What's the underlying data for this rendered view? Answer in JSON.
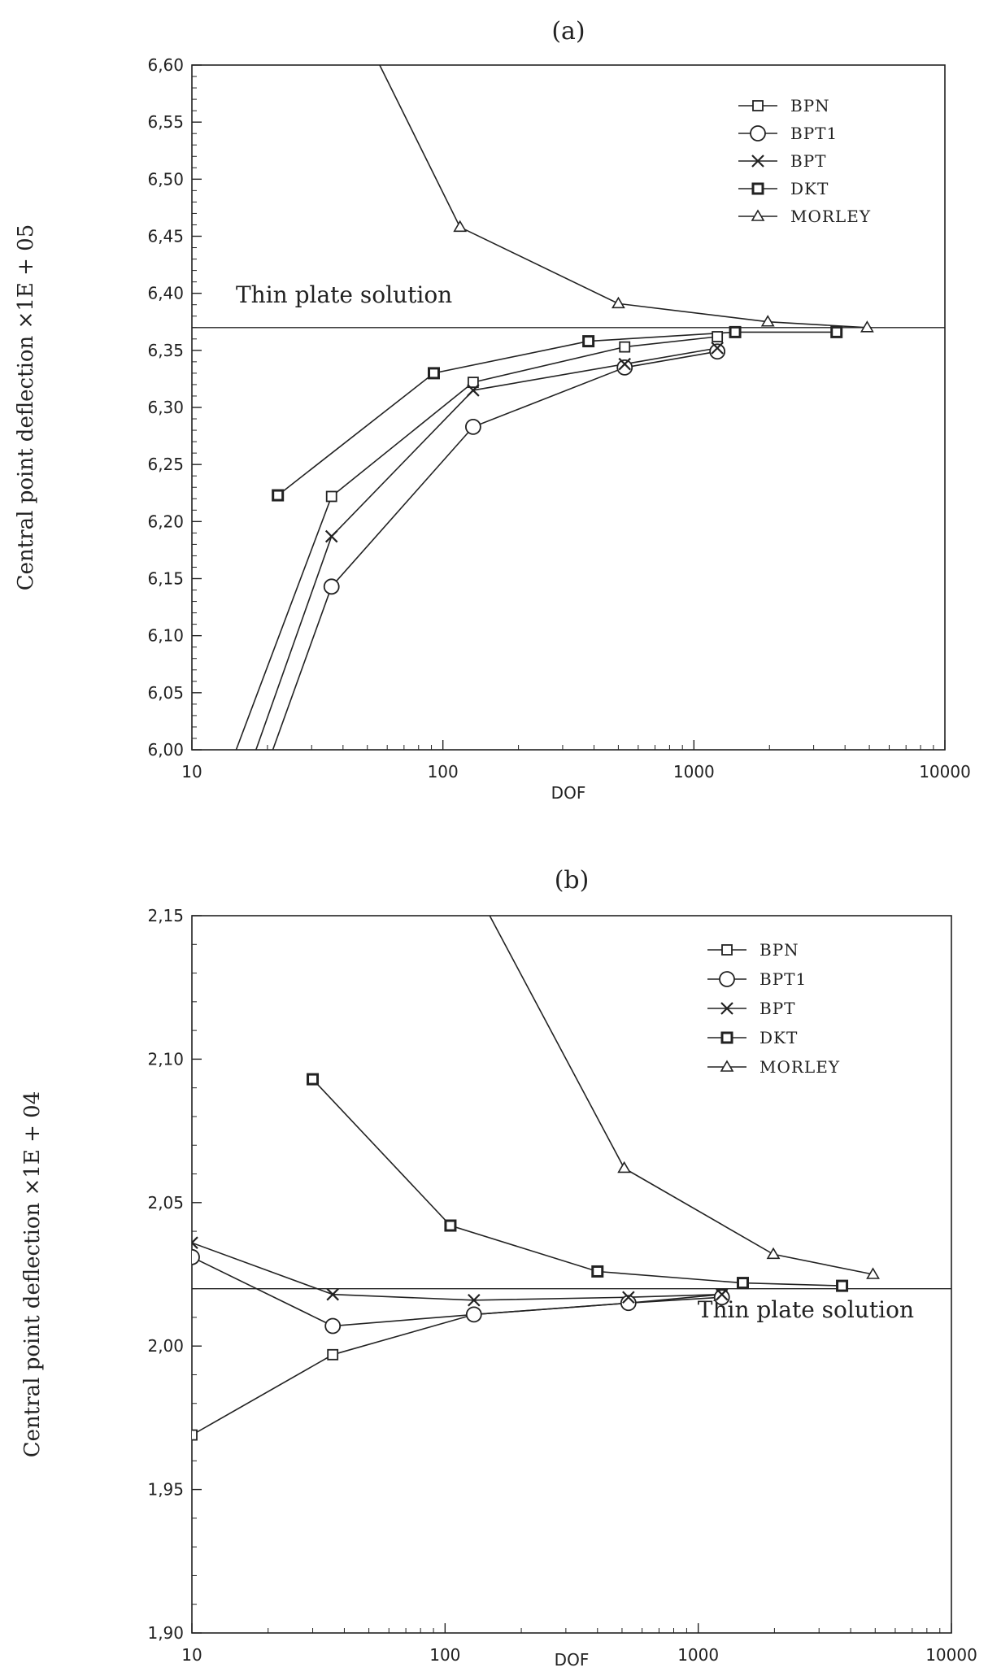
{
  "chart_data": [
    {
      "type": "line",
      "title": "(a)",
      "xlabel": "DOF",
      "ylabel": "Central point deflection ×1E + 05",
      "xscale": "log",
      "xlim": [
        10,
        10000
      ],
      "ylim": [
        6.0,
        6.6
      ],
      "xticks": [
        10,
        100,
        1000,
        10000
      ],
      "xtick_labels": [
        "10",
        "100",
        "1000",
        "10000"
      ],
      "yticks": [
        6.0,
        6.05,
        6.1,
        6.15,
        6.2,
        6.25,
        6.3,
        6.35,
        6.4,
        6.45,
        6.5,
        6.55,
        6.6
      ],
      "ytick_labels": [
        "6,00",
        "6,05",
        "6,10",
        "6,15",
        "6,20",
        "6,25",
        "6,30",
        "6,35",
        "6,40",
        "6,45",
        "6,50",
        "6,55",
        "6,60"
      ],
      "reference_line": {
        "label": "Thin plate solution",
        "y": 6.37
      },
      "legend": [
        "BPN",
        "BPT1",
        "BPT",
        "DKT",
        "MORLEY"
      ],
      "series": [
        {
          "name": "BPN",
          "marker": "square",
          "x": [
            15,
            36,
            132,
            530,
            1240
          ],
          "y": [
            6.0,
            6.222,
            6.322,
            6.353,
            6.362
          ]
        },
        {
          "name": "BPT1",
          "marker": "circle",
          "x": [
            21,
            36,
            132,
            530,
            1240
          ],
          "y": [
            6.0,
            6.143,
            6.283,
            6.335,
            6.349
          ]
        },
        {
          "name": "BPT",
          "marker": "cross",
          "x": [
            18,
            36,
            132,
            530,
            1240
          ],
          "y": [
            6.0,
            6.187,
            6.315,
            6.338,
            6.352
          ]
        },
        {
          "name": "DKT",
          "marker": "dot-square",
          "x": [
            22,
            92,
            380,
            1460,
            3700
          ],
          "y": [
            6.223,
            6.33,
            6.358,
            6.366,
            6.366
          ]
        },
        {
          "name": "MORLEY",
          "marker": "triangle",
          "x": [
            56,
            117,
            500,
            1970,
            4900
          ],
          "y": [
            6.6,
            6.458,
            6.391,
            6.375,
            6.37
          ]
        }
      ]
    },
    {
      "type": "line",
      "title": "(b)",
      "xlabel": "DOF",
      "ylabel": "Central point deflection ×1E + 04",
      "xscale": "log",
      "xlim": [
        10,
        10000
      ],
      "ylim": [
        1.9,
        2.15
      ],
      "xticks": [
        10,
        100,
        1000,
        10000
      ],
      "xtick_labels": [
        "10",
        "100",
        "1000",
        "10000"
      ],
      "yticks": [
        1.9,
        1.95,
        2.0,
        2.05,
        2.1,
        2.15
      ],
      "ytick_labels": [
        "1,90",
        "1,95",
        "2,00",
        "2,05",
        "2,10",
        "2,15"
      ],
      "reference_line": {
        "label": "Thin plate solution",
        "y": 2.02
      },
      "legend": [
        "BPN",
        "BPT1",
        "BPT",
        "DKT",
        "MORLEY"
      ],
      "series": [
        {
          "name": "BPN",
          "marker": "square",
          "x": [
            10,
            36,
            130,
            530,
            1240
          ],
          "y": [
            1.969,
            1.997,
            2.011,
            2.015,
            2.018
          ]
        },
        {
          "name": "BPT1",
          "marker": "circle",
          "x": [
            10,
            36,
            130,
            530,
            1240
          ],
          "y": [
            2.031,
            2.007,
            2.011,
            2.015,
            2.017
          ]
        },
        {
          "name": "BPT",
          "marker": "cross",
          "x": [
            10,
            36,
            130,
            530,
            1240
          ],
          "y": [
            2.036,
            2.018,
            2.016,
            2.017,
            2.018
          ]
        },
        {
          "name": "DKT",
          "marker": "dot-square",
          "x": [
            30,
            105,
            400,
            1500,
            3700
          ],
          "y": [
            2.093,
            2.042,
            2.026,
            2.022,
            2.021
          ]
        },
        {
          "name": "MORLEY",
          "marker": "triangle",
          "x": [
            150,
            510,
            1980,
            4900
          ],
          "y": [
            2.15,
            2.062,
            2.032,
            2.025
          ]
        }
      ]
    }
  ]
}
